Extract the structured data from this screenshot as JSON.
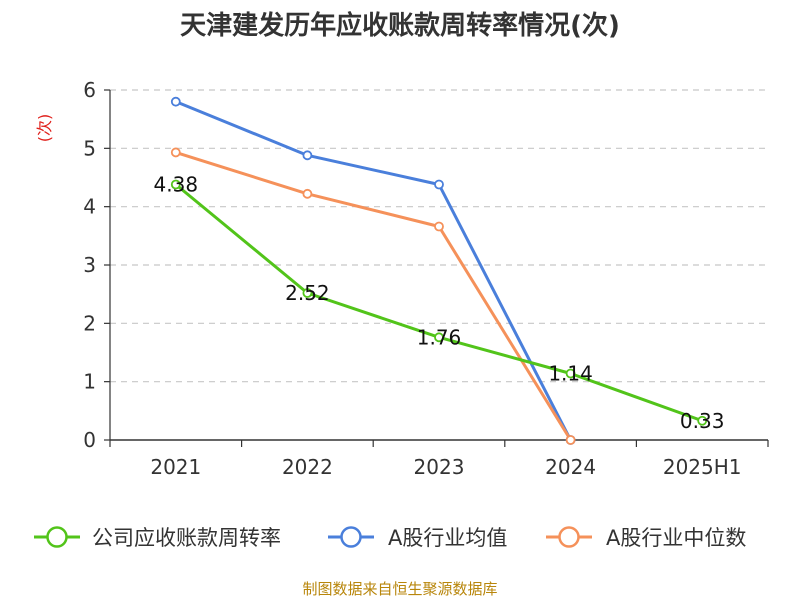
{
  "chart_data": {
    "type": "line",
    "title": "天津建发历年应收账款周转率情况(次)",
    "ylabel": "(次)",
    "categories": [
      "2021",
      "2022",
      "2023",
      "2024",
      "2025H1"
    ],
    "y_ticks": [
      "0",
      "1",
      "2",
      "3",
      "4",
      "5",
      "6"
    ],
    "ylim": [
      0,
      6
    ],
    "grid": true,
    "legend_position": "bottom",
    "series": [
      {
        "name": "公司应收账款周转率",
        "color": "#52c41a",
        "values": [
          4.38,
          2.52,
          1.76,
          1.14,
          0.33
        ],
        "labels": [
          "4.38",
          "2.52",
          "1.76",
          "1.14",
          "0.33"
        ]
      },
      {
        "name": "A股行业均值",
        "color": "#4a7fdb",
        "values": [
          5.8,
          4.88,
          4.38,
          0,
          null
        ]
      },
      {
        "name": "A股行业中位数",
        "color": "#f5915a",
        "values": [
          4.93,
          4.22,
          3.66,
          0,
          null
        ]
      }
    ],
    "source": "制图数据来自恒生聚源数据库"
  }
}
